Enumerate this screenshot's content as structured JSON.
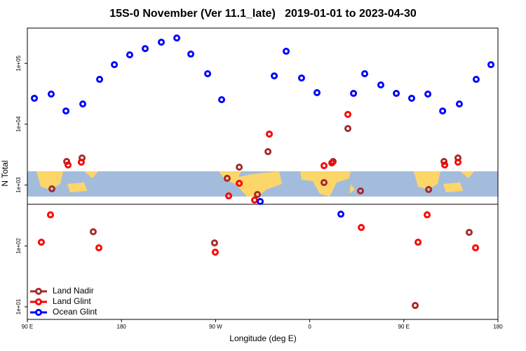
{
  "chart_data": {
    "type": "scatter",
    "title": "15S-0 November (Ver 11.1_late)   2019-01-01 to 2023-04-30",
    "xlabel": "Longitude (deg E)",
    "ylabel": "N Total",
    "xlim": [
      -270,
      180
    ],
    "xticks": [
      {
        "value": -270,
        "label": "90 E"
      },
      {
        "value": -180,
        "label": "180"
      },
      {
        "value": -90,
        "label": "90 W"
      },
      0,
      {
        "value": 90,
        "label": "90 E"
      },
      {
        "value": 180,
        "label": "180"
      }
    ],
    "ylim": [
      6.2,
      380000
    ],
    "log_y": true,
    "yticks": [
      {
        "value": 10,
        "label": "1e+01"
      },
      {
        "value": 100,
        "label": "1e+02"
      },
      {
        "value": 1000,
        "label": "1e+03"
      },
      {
        "value": 10000,
        "label": "1e+04"
      },
      {
        "value": 100000,
        "label": "1e+05"
      }
    ],
    "legend": "bottom-left",
    "series": [
      {
        "name": "Land Nadir",
        "color": "#a52a2a",
        "x": [
          -246.5,
          -232.4,
          -217.7,
          -207.0,
          -91.0,
          -78.9,
          -67.4,
          -50.0,
          -39.9,
          13.7,
          22.4,
          36.5,
          48.6,
          100.9,
          113.7,
          128.4,
          141.8,
          152.5
        ],
        "values": [
          867,
          2440,
          2790,
          171,
          112,
          1290,
          1970,
          700,
          3540,
          1100,
          2440,
          8500,
          800,
          10.5,
          844,
          2440,
          2790,
          167
        ]
      },
      {
        "name": "Land Glint",
        "color": "#ff0000",
        "x": [
          -256.6,
          -247.9,
          -231.1,
          -218.4,
          -201.6,
          -90.3,
          -77.5,
          -67.4,
          -52.7,
          -38.6,
          13.7,
          21.1,
          36.5,
          49.3,
          103.6,
          112.3,
          129.1,
          141.8,
          158.6
        ],
        "values": [
          115,
          324,
          2140,
          2380,
          93,
          79,
          664,
          1070,
          567,
          6880,
          2080,
          2310,
          14500,
          201,
          115,
          324,
          2140,
          2380,
          93
        ]
      },
      {
        "name": "Ocean Glint",
        "color": "#0000ff",
        "x": [
          -263.3,
          -247.2,
          -233.1,
          -217.0,
          -200.9,
          -186.8,
          -172.1,
          -157.3,
          -141.9,
          -127.1,
          -113.7,
          -97.6,
          -84.2,
          -47.3,
          -33.9,
          -22.5,
          -7.8,
          7.0,
          29.8,
          41.9,
          52.6,
          68.0,
          82.8,
          97.5,
          113.0,
          127.1,
          143.1,
          159.2,
          173.3
        ],
        "values": [
          26700,
          31300,
          16500,
          21500,
          54600,
          95300,
          138000,
          175000,
          223000,
          261000,
          142000,
          67500,
          25300,
          537,
          62300,
          158000,
          57500,
          33000,
          333,
          32100,
          67500,
          44200,
          32100,
          26700,
          31300,
          16500,
          21500,
          54600,
          95300
        ]
      }
    ]
  }
}
